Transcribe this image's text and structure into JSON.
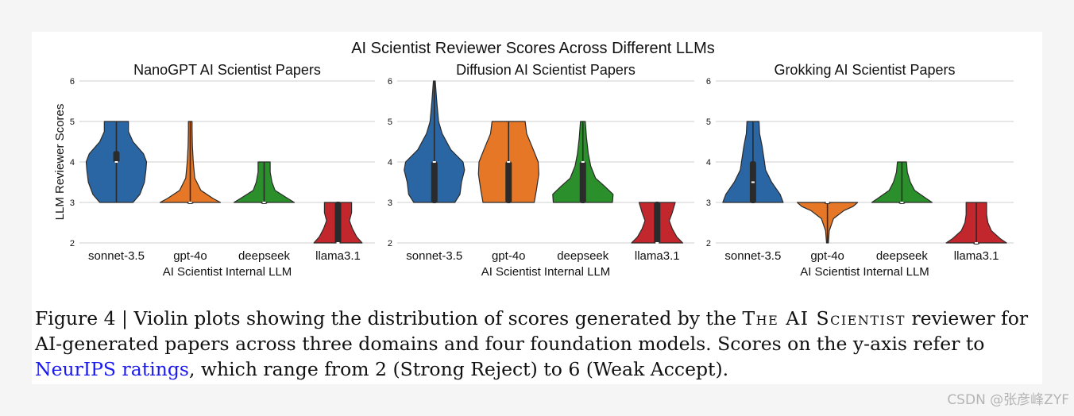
{
  "figure": {
    "suptitle": "AI Scientist Reviewer Scores Across Different LLMs",
    "ylabel": "LLM Reviewer Scores"
  },
  "colors": {
    "sonnet-3.5": "#2a66a3",
    "gpt-4o": "#e57727",
    "deepseek": "#2b8f2b",
    "llama3.1": "#c1272d"
  },
  "chart_data": [
    {
      "type": "violin",
      "title": "NanoGPT AI Scientist Papers",
      "xlabel": "AI Scientist Internal LLM",
      "ylabel": "LLM Reviewer Scores",
      "categories": [
        "sonnet-3.5",
        "gpt-4o",
        "deepseek",
        "llama3.1"
      ],
      "yticks": [
        2,
        3,
        4,
        5,
        6
      ],
      "ylim": [
        2,
        6
      ],
      "grid": true,
      "violins": [
        {
          "name": "sonnet-3.5",
          "ymin": 3,
          "ymax": 5,
          "q1": 4,
          "median": 4,
          "q3": 4.25,
          "profile": [
            [
              3,
              0.55
            ],
            [
              3.2,
              0.78
            ],
            [
              3.5,
              0.93
            ],
            [
              3.8,
              0.98
            ],
            [
              4.0,
              1.0
            ],
            [
              4.2,
              0.9
            ],
            [
              4.5,
              0.55
            ],
            [
              4.75,
              0.4
            ],
            [
              5,
              0.4
            ]
          ]
        },
        {
          "name": "gpt-4o",
          "ymin": 3,
          "ymax": 5,
          "q1": 3,
          "median": 3,
          "q3": 3,
          "profile": [
            [
              3,
              1.0
            ],
            [
              3.1,
              0.75
            ],
            [
              3.3,
              0.35
            ],
            [
              3.6,
              0.15
            ],
            [
              4.0,
              0.1
            ],
            [
              4.4,
              0.07
            ],
            [
              4.8,
              0.06
            ],
            [
              5,
              0.06
            ]
          ]
        },
        {
          "name": "deepseek",
          "ymin": 3,
          "ymax": 4,
          "q1": 3,
          "median": 3,
          "q3": 3,
          "profile": [
            [
              3,
              1.0
            ],
            [
              3.1,
              0.78
            ],
            [
              3.3,
              0.36
            ],
            [
              3.5,
              0.26
            ],
            [
              3.75,
              0.2
            ],
            [
              4,
              0.2
            ]
          ]
        },
        {
          "name": "llama3.1",
          "ymin": 2,
          "ymax": 3,
          "q1": 2,
          "median": 2,
          "q3": 3,
          "profile": [
            [
              2,
              0.8
            ],
            [
              2.15,
              0.62
            ],
            [
              2.35,
              0.48
            ],
            [
              2.55,
              0.38
            ],
            [
              2.75,
              0.45
            ],
            [
              3,
              0.45
            ]
          ]
        }
      ]
    },
    {
      "type": "violin",
      "title": "Diffusion AI Scientist Papers",
      "xlabel": "AI Scientist Internal LLM",
      "categories": [
        "sonnet-3.5",
        "gpt-4o",
        "deepseek",
        "llama3.1"
      ],
      "yticks": [
        2,
        3,
        4,
        5,
        6
      ],
      "ylim": [
        2,
        6
      ],
      "grid": true,
      "violins": [
        {
          "name": "sonnet-3.5",
          "ymin": 3,
          "ymax": 6,
          "q1": 3,
          "median": 4,
          "q3": 4,
          "profile": [
            [
              3,
              0.68
            ],
            [
              3.2,
              0.85
            ],
            [
              3.5,
              0.9
            ],
            [
              3.8,
              1.0
            ],
            [
              4.0,
              0.95
            ],
            [
              4.3,
              0.55
            ],
            [
              4.7,
              0.26
            ],
            [
              5.0,
              0.14
            ],
            [
              5.5,
              0.08
            ],
            [
              6,
              0.03
            ]
          ]
        },
        {
          "name": "gpt-4o",
          "ymin": 3,
          "ymax": 5,
          "q1": 3,
          "median": 4,
          "q3": 4,
          "profile": [
            [
              3,
              0.85
            ],
            [
              3.3,
              0.92
            ],
            [
              3.7,
              1.0
            ],
            [
              4.0,
              0.98
            ],
            [
              4.3,
              0.82
            ],
            [
              4.7,
              0.6
            ],
            [
              5,
              0.55
            ]
          ]
        },
        {
          "name": "deepseek",
          "ymin": 3,
          "ymax": 5,
          "q1": 3,
          "median": 4,
          "q3": 4,
          "profile": [
            [
              3,
              0.98
            ],
            [
              3.2,
              1.0
            ],
            [
              3.4,
              0.72
            ],
            [
              3.6,
              0.42
            ],
            [
              3.9,
              0.26
            ],
            [
              4.2,
              0.18
            ],
            [
              4.6,
              0.12
            ],
            [
              5,
              0.08
            ]
          ]
        },
        {
          "name": "llama3.1",
          "ymin": 2,
          "ymax": 3,
          "q1": 2,
          "median": 2,
          "q3": 3,
          "profile": [
            [
              2,
              0.85
            ],
            [
              2.15,
              0.65
            ],
            [
              2.35,
              0.5
            ],
            [
              2.55,
              0.4
            ],
            [
              2.75,
              0.5
            ],
            [
              3,
              0.6
            ]
          ]
        }
      ]
    },
    {
      "type": "violin",
      "title": "Grokking AI Scientist Papers",
      "xlabel": "AI Scientist Internal LLM",
      "categories": [
        "sonnet-3.5",
        "gpt-4o",
        "deepseek",
        "llama3.1"
      ],
      "yticks": [
        2,
        3,
        4,
        5,
        6
      ],
      "ylim": [
        2,
        6
      ],
      "grid": true,
      "violins": [
        {
          "name": "sonnet-3.5",
          "ymin": 3,
          "ymax": 5,
          "q1": 3,
          "median": 3.5,
          "q3": 4,
          "profile": [
            [
              3,
              1.0
            ],
            [
              3.2,
              0.9
            ],
            [
              3.5,
              0.62
            ],
            [
              3.8,
              0.42
            ],
            [
              4.1,
              0.36
            ],
            [
              4.4,
              0.3
            ],
            [
              4.7,
              0.22
            ],
            [
              5,
              0.2
            ]
          ]
        },
        {
          "name": "gpt-4o",
          "ymin": 2,
          "ymax": 3,
          "q1": 3,
          "median": 3,
          "q3": 3,
          "profile": [
            [
              2,
              0.03
            ],
            [
              2.3,
              0.06
            ],
            [
              2.6,
              0.2
            ],
            [
              2.8,
              0.55
            ],
            [
              2.9,
              0.85
            ],
            [
              3,
              1.0
            ]
          ]
        },
        {
          "name": "deepseek",
          "ymin": 3,
          "ymax": 4,
          "q1": 3,
          "median": 3,
          "q3": 3,
          "profile": [
            [
              3,
              1.0
            ],
            [
              3.1,
              0.8
            ],
            [
              3.3,
              0.42
            ],
            [
              3.5,
              0.28
            ],
            [
              3.75,
              0.18
            ],
            [
              4,
              0.15
            ]
          ]
        },
        {
          "name": "llama3.1",
          "ymin": 2,
          "ymax": 3,
          "q1": 2,
          "median": 2,
          "q3": 2,
          "profile": [
            [
              2,
              1.0
            ],
            [
              2.1,
              0.8
            ],
            [
              2.3,
              0.5
            ],
            [
              2.5,
              0.38
            ],
            [
              2.7,
              0.34
            ],
            [
              3,
              0.34
            ]
          ]
        }
      ]
    }
  ],
  "caption": {
    "label": "Figure 4",
    "separator": "|",
    "text_before": "Violin plots showing the distribution of scores generated by the",
    "smallcaps": "The AI Scientist",
    "text_middle": "reviewer for AI-generated papers across three domains and four foundation models. Scores on the y-axis refer to",
    "link": "NeurIPS ratings",
    "text_after": ", which range from 2 (Strong Reject) to 6 (Weak Accept)."
  },
  "watermark": "CSDN @张彦峰ZYF"
}
